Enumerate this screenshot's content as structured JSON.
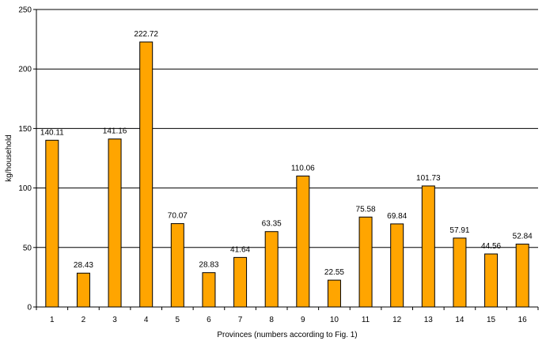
{
  "chart_data": {
    "type": "bar",
    "categories": [
      "1",
      "2",
      "3",
      "4",
      "5",
      "6",
      "7",
      "8",
      "9",
      "10",
      "11",
      "12",
      "13",
      "14",
      "15",
      "16"
    ],
    "values": [
      140.11,
      28.43,
      141.16,
      222.72,
      70.07,
      28.83,
      41.64,
      63.35,
      110.06,
      22.55,
      75.58,
      69.84,
      101.73,
      57.91,
      44.56,
      52.84
    ],
    "data_labels": [
      "140.11",
      "28.43",
      "141.16",
      "222.72",
      "70.07",
      "28.83",
      "41.64",
      "63.35",
      "110.06",
      "22.55",
      "75.58",
      "69.84",
      "101.73",
      "57.91",
      "44.56",
      "52.84"
    ],
    "title": "",
    "xlabel": "Provinces (numbers according to Fig. 1)",
    "ylabel": "kg/household",
    "ylim": [
      0,
      250
    ],
    "yticks": [
      0,
      50,
      100,
      150,
      200,
      250
    ],
    "grid": true,
    "legend": "none",
    "colors": {
      "bar": "#FFA500",
      "grid": "#000000"
    }
  }
}
